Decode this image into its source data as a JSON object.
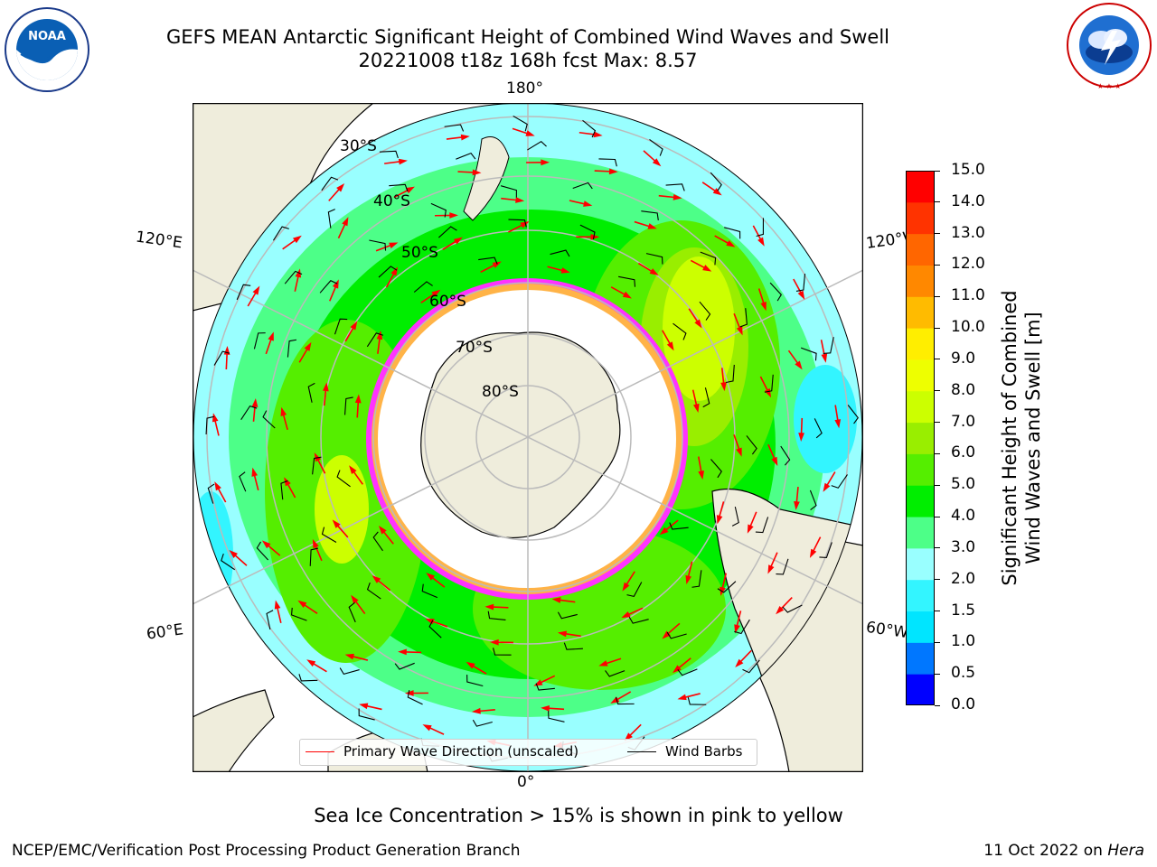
{
  "header": {
    "title": "GEFS MEAN Antarctic Significant Height of Combined Wind Waves and Swell",
    "subtitle": "20221008 t18z 168h fcst   Max: 8.57"
  },
  "logos": {
    "noaa_text": "NOAA",
    "noaa_ring": "NATIONAL OCEANIC AND ATMOSPHERIC ADMINISTRATION · U.S. DEPARTMENT OF COMMERCE",
    "nws_ring": "NATIONAL WEATHER SERVICE"
  },
  "map": {
    "longitude_labels": {
      "top": "180°",
      "bottom": "0°",
      "upper_left": "120°E",
      "upper_right": "120°W",
      "lower_left": "60°E",
      "lower_right": "60°W"
    },
    "latitude_labels": [
      "30°S",
      "40°S",
      "50°S",
      "60°S",
      "70°S",
      "80°S"
    ],
    "colors": {
      "land": "#efeddc",
      "ice_edge": "#ff33ff",
      "ice_fill": "#ffb347",
      "wave_arrow": "#ff0000",
      "wind_barb": "#000000",
      "grid": "#bbbbbb"
    }
  },
  "legend": {
    "wave_direction": "Primary Wave Direction (unscaled)",
    "wind_barbs": "Wind Barbs"
  },
  "colorbar": {
    "label_line1": "Significant Height of Combined",
    "label_line2": "Wind Waves and Swell [m]",
    "ticks": [
      "0.0",
      "0.5",
      "1.0",
      "1.5",
      "2.0",
      "3.0",
      "4.0",
      "5.0",
      "6.0",
      "7.0",
      "8.0",
      "9.0",
      "10.0",
      "11.0",
      "12.0",
      "13.0",
      "14.0",
      "15.0"
    ],
    "colors": [
      "#0000ff",
      "#0077ff",
      "#00e5ff",
      "#33f5ff",
      "#99ffff",
      "#4dff88",
      "#00ee00",
      "#55ee00",
      "#99ee00",
      "#ccff00",
      "#eeff00",
      "#ffee00",
      "#ffbb00",
      "#ff8800",
      "#ff6600",
      "#ff3300",
      "#ff0000"
    ]
  },
  "notes": {
    "ice": "Sea Ice Concentration > 15% is shown in pink to yellow"
  },
  "footer": {
    "left": "NCEP/EMC/Verification Post Processing Product Generation Branch",
    "right_date": "11 Oct 2022 on",
    "right_host": "Hera"
  }
}
